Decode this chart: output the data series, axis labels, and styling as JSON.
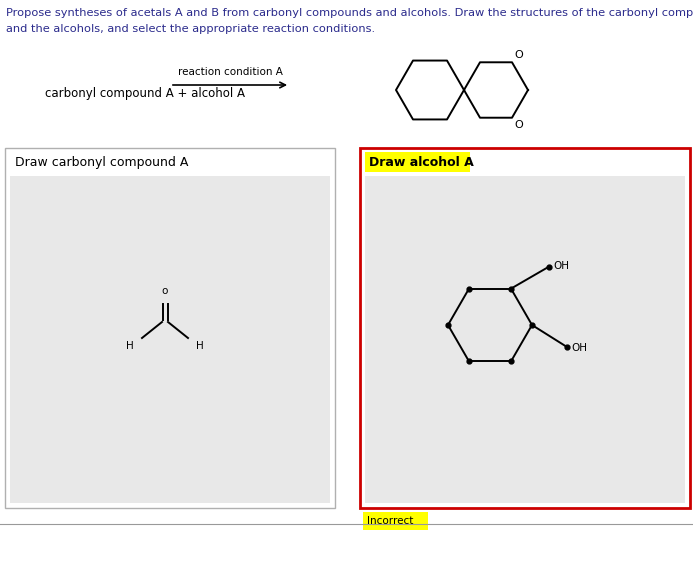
{
  "title_line1": "Propose syntheses of acetals A and B from carbonyl compounds and alcohols. Draw the structures of the carbonyl compounds",
  "title_line2": "and the alcohols, and select the appropriate reaction conditions.",
  "reaction_label": "carbonyl compound A + alcohol A",
  "reaction_condition": "reaction condition A",
  "box1_label": "Draw carbonyl compound A",
  "box2_label": "Draw alcohol A",
  "incorrect_label": "Incorrect",
  "bg_color": "#ffffff",
  "box_bg": "#e8e8e8",
  "box1_border": "#b0b0b0",
  "box2_border": "#cc0000",
  "yellow_highlight": "#ffff00",
  "text_color": "#2b2b8c",
  "black": "#000000"
}
